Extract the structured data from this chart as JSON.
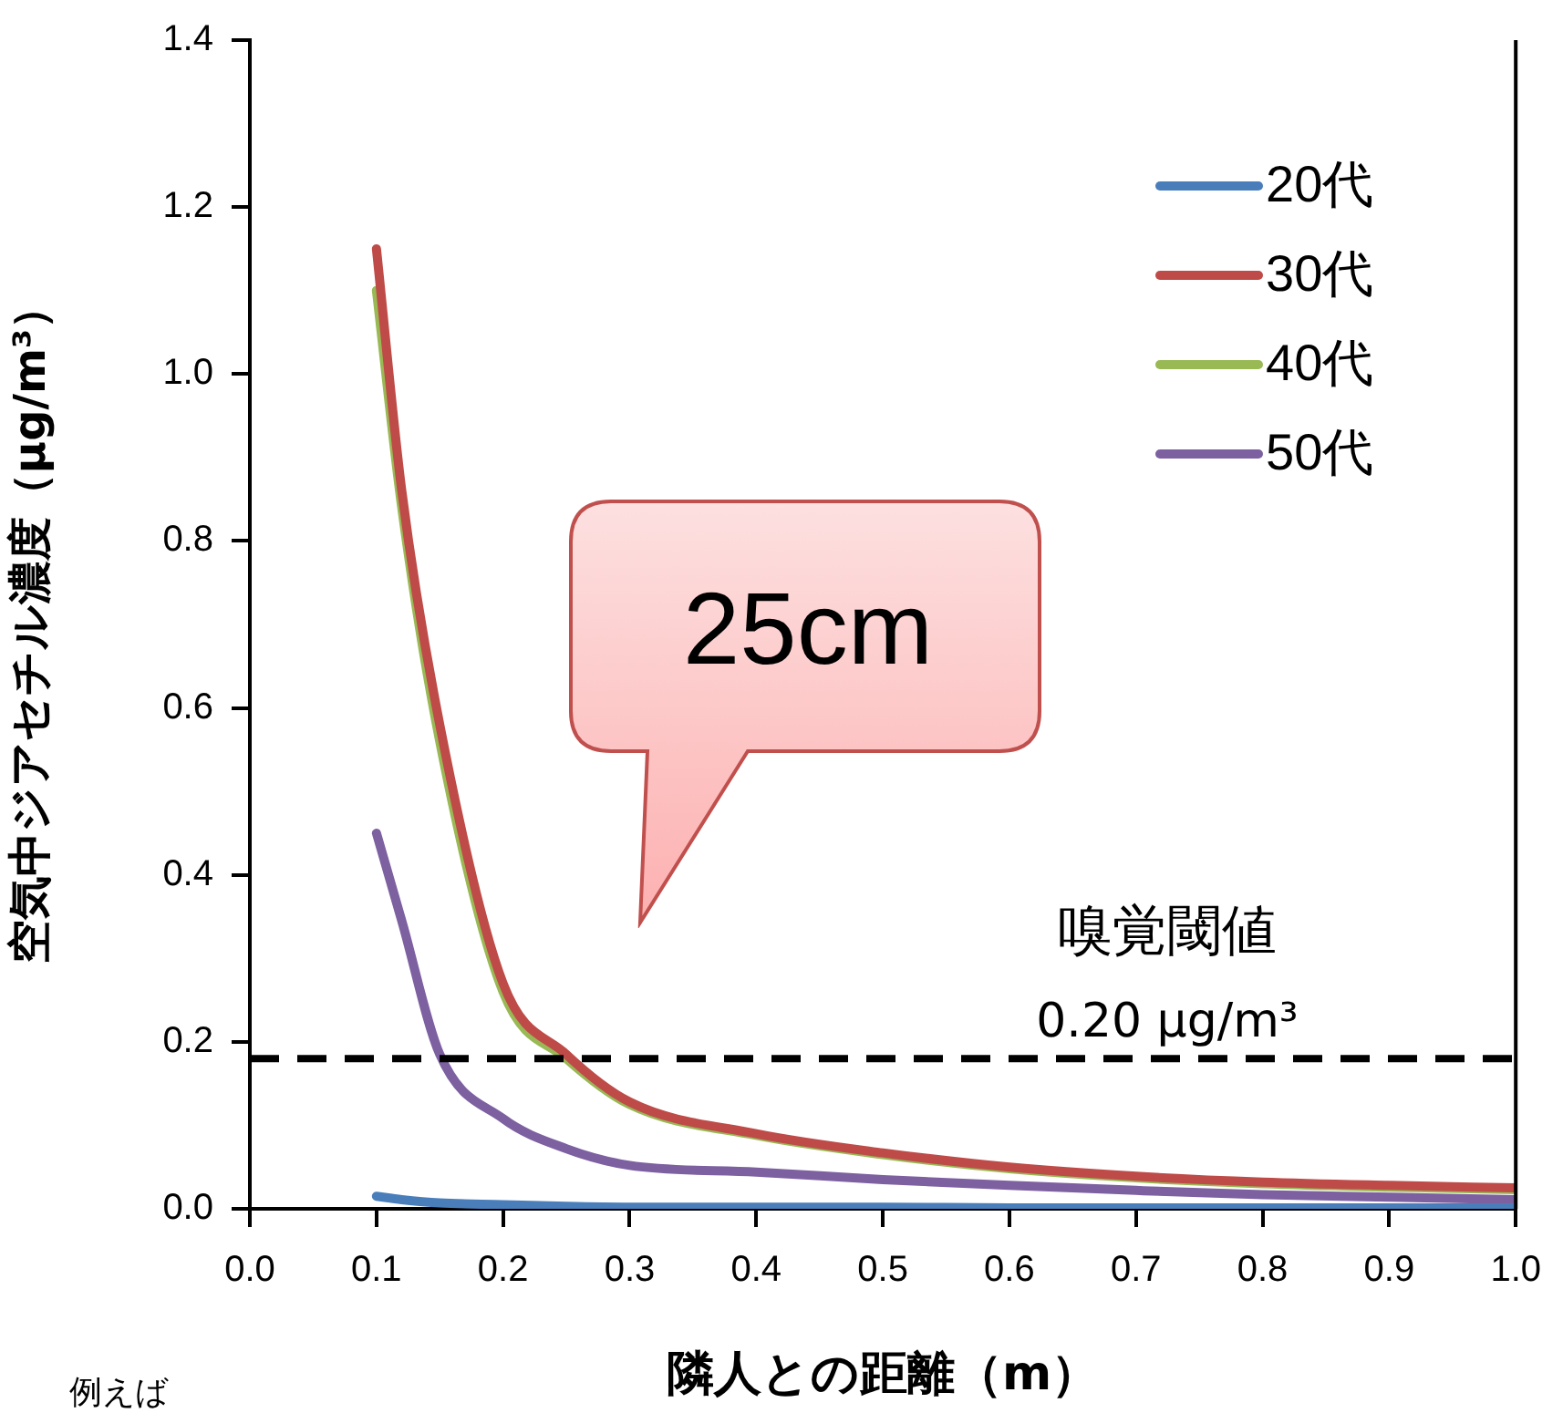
{
  "chart_data": {
    "type": "line",
    "xlabel": "隣人との距離（m）",
    "ylabel": "空気中ジアセチル濃度（µg/m³）",
    "xlim": [
      0,
      1
    ],
    "xticks": [
      {
        "value": 0,
        "label": "0.0"
      },
      0.1,
      0.2,
      0.3,
      0.4,
      0.5,
      0.6,
      0.7,
      0.8,
      0.9,
      {
        "value": 1,
        "label": "1.0"
      }
    ],
    "ylim": [
      0,
      1.4
    ],
    "yticks": [
      {
        "value": 0,
        "label": "0.0"
      },
      0.2,
      0.4,
      0.6,
      0.8,
      {
        "value": 1,
        "label": "1.0"
      },
      1.2,
      1.4
    ],
    "x": [
      0.1,
      0.12,
      0.15,
      0.2,
      0.25,
      0.3,
      0.4,
      0.5,
      0.6,
      0.7,
      0.8,
      0.9,
      1.0
    ],
    "series": [
      {
        "name": "20代",
        "color": "#4a7ebb",
        "values": [
          0.015,
          0.011,
          0.007,
          0.005,
          0.003,
          0.002,
          0.002,
          0.002,
          0.001,
          0.001,
          0.001,
          0.001,
          0.001
        ]
      },
      {
        "name": "30代",
        "color": "#be4b48",
        "values": [
          1.15,
          0.86,
          0.58,
          0.27,
          0.185,
          0.128,
          0.09,
          0.067,
          0.05,
          0.039,
          0.032,
          0.028,
          0.025
        ]
      },
      {
        "name": "40代",
        "color": "#98b954",
        "values": [
          1.1,
          0.84,
          0.56,
          0.26,
          0.18,
          0.125,
          0.088,
          0.065,
          0.048,
          0.037,
          0.03,
          0.026,
          0.023
        ]
      },
      {
        "name": "50代",
        "color": "#7d60a0",
        "values": [
          0.45,
          0.345,
          0.185,
          0.108,
          0.072,
          0.052,
          0.044,
          0.035,
          0.028,
          0.022,
          0.017,
          0.014,
          0.011
        ]
      }
    ],
    "ref_lines": [
      {
        "axis": "y",
        "value": 0.18,
        "label": "嗅覚閾値\n0.20 µg/m³",
        "color": "#000000",
        "line_style": "dashed"
      }
    ],
    "annotations": [
      "25cm",
      "例えば"
    ],
    "legend": "top right",
    "grid": false,
    "marker": "none",
    "line_style": "solid"
  }
}
